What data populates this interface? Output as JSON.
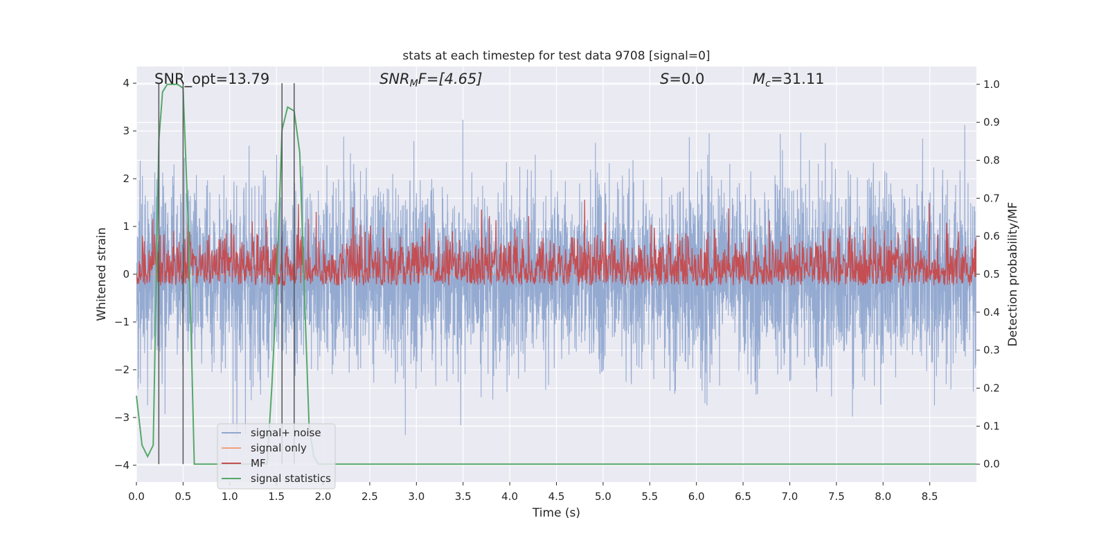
{
  "chart_data": {
    "type": "line",
    "title": "stats at each timestep for test data 9708 [signal=0]",
    "xlabel": "Time (s)",
    "ylabel": "Whitened strain",
    "ylabel_right": "Detection probability/MF",
    "xlim": [
      0,
      9.0
    ],
    "ylim": [
      -4.35,
      4.35
    ],
    "ylim_right": [
      -0.047,
      1.047
    ],
    "x_ticks": [
      "0.0",
      "0.5",
      "1.0",
      "1.5",
      "2.0",
      "2.5",
      "3.0",
      "3.5",
      "4.0",
      "4.5",
      "5.0",
      "5.5",
      "6.0",
      "6.5",
      "7.0",
      "7.5",
      "8.0",
      "8.5"
    ],
    "y_ticks": [
      "4",
      "3",
      "2",
      "1",
      "0",
      "−1",
      "−2",
      "−3",
      "−4"
    ],
    "y_right_ticks": [
      "1.0",
      "0.9",
      "0.8",
      "0.7",
      "0.6",
      "0.5",
      "0.4",
      "0.3",
      "0.2",
      "0.1",
      "0.0"
    ],
    "grid": true,
    "legend_position": "lower-left",
    "annotations": {
      "snr_opt": "SNR_opt=13.79",
      "snr_mf_base": "SNR",
      "snr_mf_sub": "M",
      "snr_mf_rest": "F=[4.65]",
      "s_italic": "S",
      "s_rest": "=0.0",
      "mc_base": "M",
      "mc_sub": "c",
      "mc_rest": "=31.11"
    },
    "vlines_x": [
      0.24,
      0.5,
      1.56,
      1.69
    ],
    "series": [
      {
        "name": "signal+ noise",
        "color": "#8fa6cf",
        "axis": "left",
        "kind": "noise",
        "sample_rate": 512,
        "std": 0.95
      },
      {
        "name": "signal only",
        "color": "#f0a07a",
        "axis": "left",
        "kind": "flat"
      },
      {
        "name": "MF",
        "color": "#c44e52",
        "axis": "right",
        "kind": "mf",
        "baseline": 0.5,
        "amplitude": 0.07
      },
      {
        "name": "signal statistics",
        "color": "#55a868",
        "axis": "right",
        "x": [
          0.0,
          0.06,
          0.12,
          0.18,
          0.24,
          0.28,
          0.33,
          0.38,
          0.44,
          0.5,
          0.56,
          0.62,
          0.7,
          0.8,
          0.9,
          1.0,
          1.1,
          1.2,
          1.3,
          1.4,
          1.45,
          1.5,
          1.56,
          1.62,
          1.69,
          1.75,
          1.8,
          1.85,
          1.9,
          1.95,
          2.0,
          2.1,
          2.2,
          3.0,
          4.0,
          5.0,
          6.0,
          7.0,
          8.0,
          9.0
        ],
        "y": [
          0.18,
          0.05,
          0.02,
          0.05,
          0.85,
          0.98,
          1.0,
          1.0,
          1.0,
          0.99,
          0.6,
          0.0,
          0.0,
          0.0,
          0.0,
          0.0,
          0.0,
          0.0,
          0.0,
          0.0,
          0.2,
          0.45,
          0.88,
          0.94,
          0.93,
          0.82,
          0.45,
          0.1,
          0.02,
          0.0,
          0.0,
          0.0,
          0.0,
          0.0,
          0.0,
          0.0,
          0.0,
          0.0,
          0.0,
          0.0
        ]
      }
    ]
  },
  "colors": {
    "plot_background": "#eaeaf2",
    "grid": "#ffffff",
    "vline": "#555555",
    "text": "#262626"
  }
}
